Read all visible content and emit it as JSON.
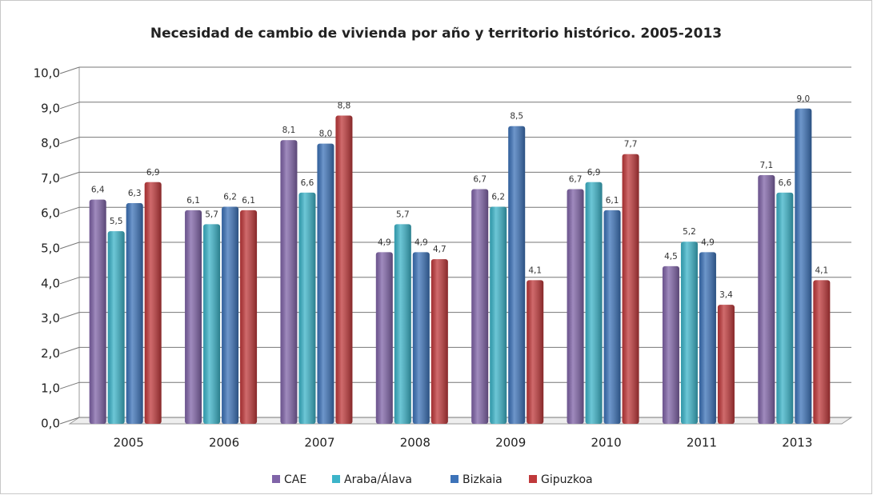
{
  "chart_data": {
    "type": "bar",
    "title": "Necesidad de cambio de vivienda por año y territorio histórico. 2005-2013",
    "categories": [
      "2005",
      "2006",
      "2007",
      "2008",
      "2009",
      "2010",
      "2011",
      "2013"
    ],
    "series": [
      {
        "name": "CAE",
        "color": "#8064a8",
        "values": [
          6.4,
          6.1,
          8.1,
          4.9,
          6.7,
          6.7,
          4.5,
          7.1
        ],
        "value_labels": [
          "6,4",
          "6,1",
          "8,1",
          "4,9",
          "6,7",
          "6,7",
          "4,5",
          "7,1"
        ]
      },
      {
        "name": "Araba/Álava",
        "color": "#3cb4c9",
        "values": [
          5.5,
          5.7,
          6.6,
          5.7,
          6.2,
          6.9,
          5.2,
          6.6
        ],
        "value_labels": [
          "5,5",
          "5,7",
          "6,6",
          "5,7",
          "6,2",
          "6,9",
          "5,2",
          "6,6"
        ]
      },
      {
        "name": "Bizkaia",
        "color": "#3d73b9",
        "values": [
          6.3,
          6.2,
          8.0,
          4.9,
          8.5,
          6.1,
          4.9,
          9.0
        ],
        "value_labels": [
          "6,3",
          "6,2",
          "8,0",
          "4,9",
          "8,5",
          "6,1",
          "4,9",
          "9,0"
        ]
      },
      {
        "name": "Gipuzkoa",
        "color": "#c0393b",
        "values": [
          6.9,
          6.1,
          8.8,
          4.7,
          4.1,
          7.7,
          3.4,
          4.1
        ],
        "value_labels": [
          "6,9",
          "6,1",
          "8,8",
          "4,7",
          "4,1",
          "7,7",
          "3,4",
          "4,1"
        ]
      }
    ],
    "ylim": [
      0,
      10
    ],
    "yticks": [
      {
        "value": 0,
        "label": "0,0"
      },
      {
        "value": 1,
        "label": "1,0"
      },
      {
        "value": 2,
        "label": "2,0"
      },
      {
        "value": 3,
        "label": "3,0"
      },
      {
        "value": 4,
        "label": "4,0"
      },
      {
        "value": 5,
        "label": "5,0"
      },
      {
        "value": 6,
        "label": "6,0"
      },
      {
        "value": 7,
        "label": "7,0"
      },
      {
        "value": 8,
        "label": "8,0"
      },
      {
        "value": 9,
        "label": "9,0"
      },
      {
        "value": 10,
        "label": "10,0"
      }
    ],
    "grid": true,
    "legend": "bottom"
  }
}
